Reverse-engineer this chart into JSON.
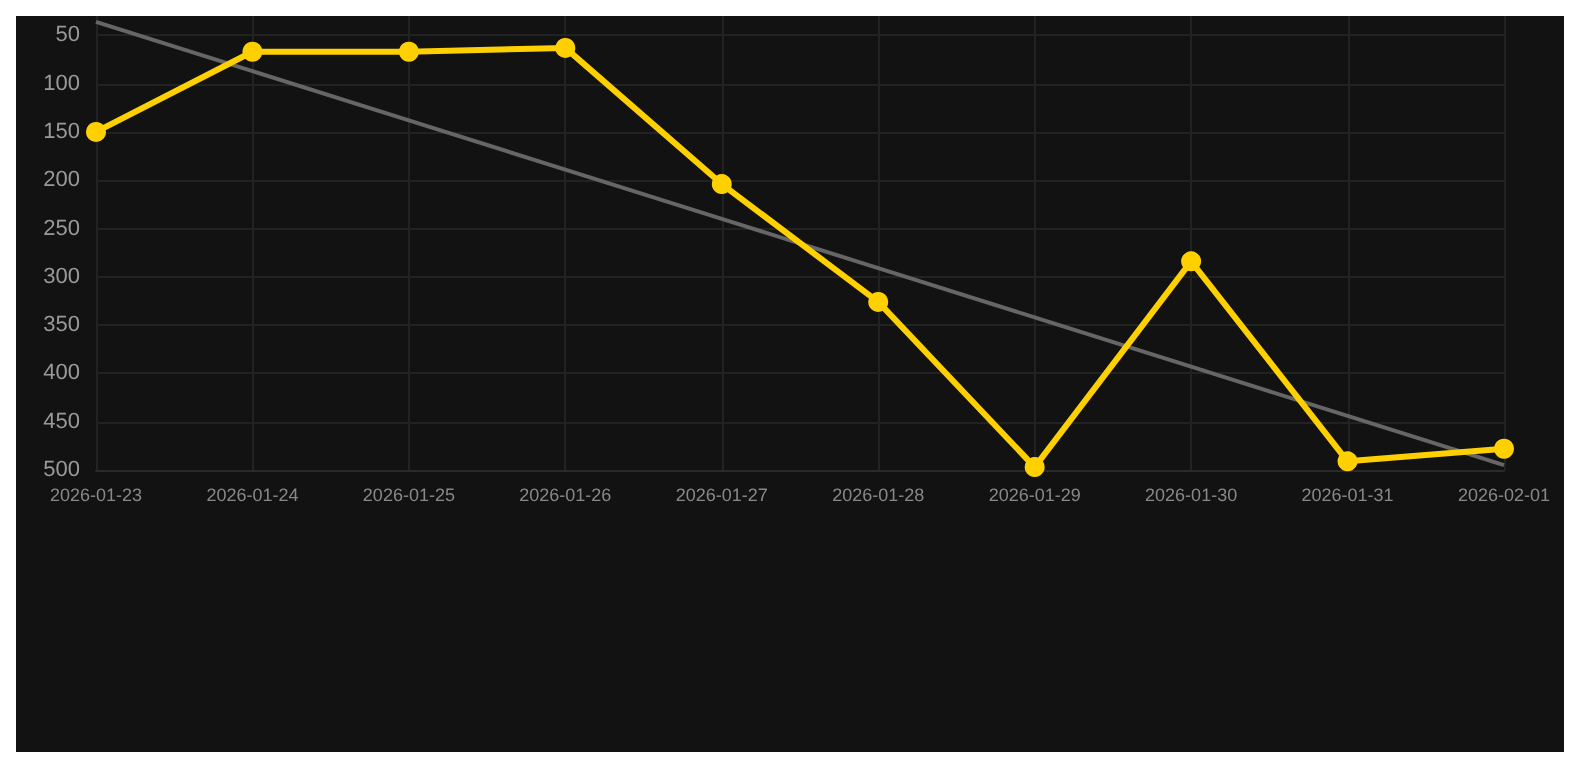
{
  "chart_data": {
    "type": "line",
    "categories": [
      "2026-01-23",
      "2026-01-24",
      "2026-01-25",
      "2026-01-26",
      "2026-01-27",
      "2026-01-28",
      "2026-01-29",
      "2026-01-30",
      "2026-01-31",
      "2026-02-01"
    ],
    "series": [
      {
        "color": "#ffd000",
        "values": [
          150,
          67,
          67,
          63,
          204,
          326,
          497,
          284,
          491,
          478
        ],
        "marker": "circle"
      },
      {
        "color": "#666666",
        "values": [
          36,
          87,
          138,
          189,
          240,
          291,
          342,
          393,
          444,
          495
        ],
        "marker": "none"
      }
    ],
    "ylim": [
      500,
      30
    ],
    "yticks": [
      50,
      100,
      150,
      200,
      250,
      300,
      350,
      400,
      450,
      500
    ],
    "grid": true
  }
}
